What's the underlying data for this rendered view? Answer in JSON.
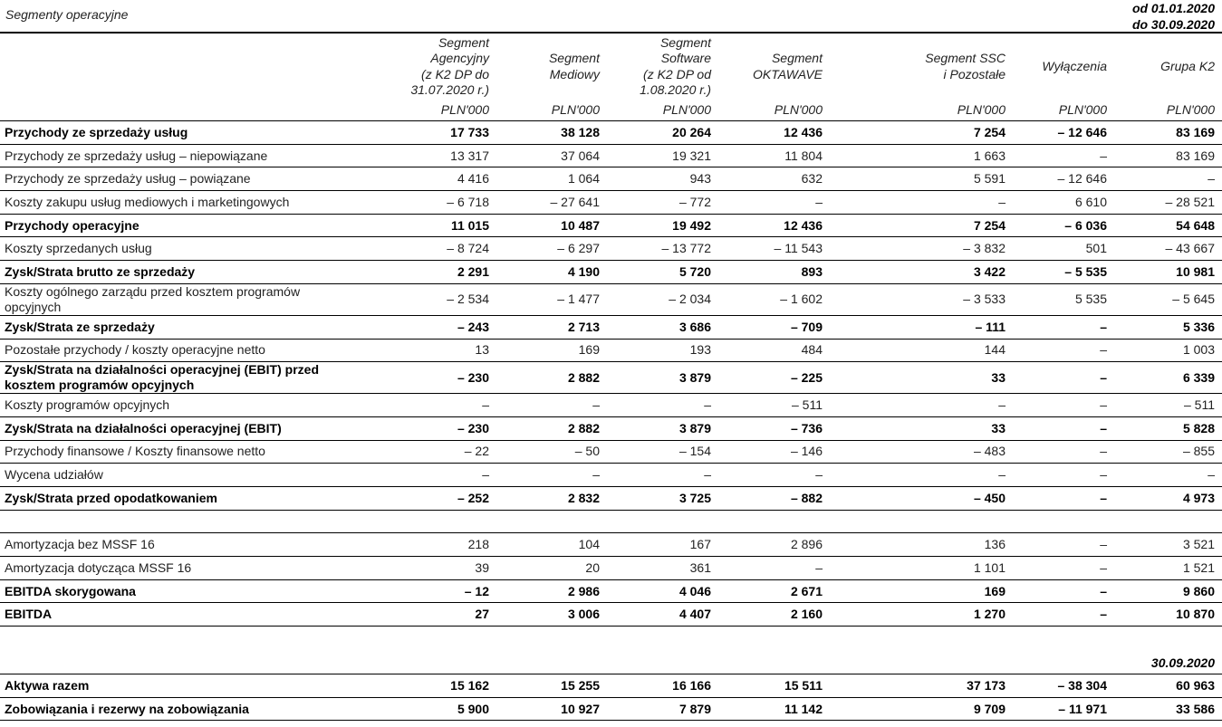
{
  "header": {
    "title": "Segmenty operacyjne",
    "period": [
      "od 01.01.2020",
      "do 30.09.2020"
    ]
  },
  "table": {
    "columns": [
      [
        "Segment",
        "Agencyjny",
        "(z K2 DP do",
        "31.07.2020 r.)"
      ],
      [
        "Segment",
        "Mediowy"
      ],
      [
        "Segment",
        "Software",
        "(z K2 DP od",
        "1.08.2020 r.)"
      ],
      [
        "Segment",
        "OKTAWAVE"
      ],
      [
        "Segment SSC",
        "i Pozostałe"
      ],
      [
        "Wyłączenia"
      ],
      [
        "Grupa K2"
      ]
    ],
    "units": [
      "PLN'000",
      "PLN'000",
      "PLN'000",
      "PLN'000",
      "PLN'000",
      "PLN'000",
      "PLN'000"
    ],
    "sections": [
      {
        "rows": [
          {
            "label": "Przychody ze sprzedaży usług",
            "bold": true,
            "cells": [
              "17 733",
              "38 128",
              "20 264",
              "12 436",
              "7 254",
              "– 12 646",
              "83 169"
            ]
          },
          {
            "label": "Przychody ze sprzedaży usług – niepowiązane",
            "bold": false,
            "cells": [
              "13 317",
              "37 064",
              "19 321",
              "11 804",
              "1 663",
              "–",
              "83 169"
            ]
          },
          {
            "label": "Przychody ze sprzedaży usług – powiązane",
            "bold": false,
            "cells": [
              "4 416",
              "1 064",
              "943",
              "632",
              "5 591",
              "– 12 646",
              "–"
            ]
          },
          {
            "label": "Koszty zakupu usług mediowych i marketingowych",
            "bold": false,
            "cells": [
              "– 6 718",
              "– 27 641",
              "– 772",
              "–",
              "–",
              "6 610",
              "– 28 521"
            ]
          },
          {
            "label": "Przychody operacyjne",
            "bold": true,
            "cells": [
              "11 015",
              "10 487",
              "19 492",
              "12 436",
              "7 254",
              "– 6 036",
              "54 648"
            ]
          },
          {
            "label": "Koszty sprzedanych usług",
            "bold": false,
            "cells": [
              "– 8 724",
              "– 6 297",
              "– 13 772",
              "– 11 543",
              "– 3 832",
              "501",
              "– 43 667"
            ]
          },
          {
            "label": "Zysk/Strata brutto ze sprzedaży",
            "bold": true,
            "cells": [
              "2 291",
              "4 190",
              "5 720",
              "893",
              "3 422",
              "– 5 535",
              "10 981"
            ]
          },
          {
            "label": "Koszty ogólnego zarządu przed kosztem programów opcyjnych",
            "bold": false,
            "cells": [
              "– 2 534",
              "– 1 477",
              "– 2 034",
              "– 1 602",
              "– 3 533",
              "5 535",
              "– 5 645"
            ]
          },
          {
            "label": "Zysk/Strata ze sprzedaży",
            "bold": true,
            "cells": [
              "– 243",
              "2 713",
              "3 686",
              "– 709",
              "– 111",
              "–",
              "5 336"
            ]
          },
          {
            "label": "Pozostałe przychody / koszty operacyjne netto",
            "bold": false,
            "cells": [
              "13",
              "169",
              "193",
              "484",
              "144",
              "–",
              "1 003"
            ]
          },
          {
            "label": "Zysk/Strata na działalności operacyjnej (EBIT) przed kosztem programów opcyjnych",
            "bold": true,
            "cells": [
              "– 230",
              "2 882",
              "3 879",
              "– 225",
              "33",
              "–",
              "6 339"
            ]
          },
          {
            "label": "Koszty programów opcyjnych",
            "bold": false,
            "cells": [
              "–",
              "–",
              "–",
              "– 511",
              "–",
              "–",
              "– 511"
            ]
          },
          {
            "label": "Zysk/Strata na działalności operacyjnej (EBIT)",
            "bold": true,
            "cells": [
              "– 230",
              "2 882",
              "3 879",
              "– 736",
              "33",
              "–",
              "5 828"
            ]
          },
          {
            "label": "Przychody finansowe / Koszty finansowe netto",
            "bold": false,
            "cells": [
              "– 22",
              "– 50",
              "– 154",
              "– 146",
              "– 483",
              "–",
              "– 855"
            ]
          },
          {
            "label": "Wycena udziałów",
            "bold": false,
            "cells": [
              "–",
              "–",
              "–",
              "–",
              "–",
              "–",
              "–"
            ]
          },
          {
            "label": "Zysk/Strata przed opodatkowaniem",
            "bold": true,
            "cells": [
              "– 252",
              "2 832",
              "3 725",
              "– 882",
              "– 450",
              "–",
              "4 973"
            ]
          }
        ]
      },
      {
        "rows": [
          {
            "label": "Amortyzacja bez MSSF 16",
            "bold": false,
            "cells": [
              "218",
              "104",
              "167",
              "2 896",
              "136",
              "–",
              "3 521"
            ]
          },
          {
            "label": "Amortyzacja dotycząca MSSF 16",
            "bold": false,
            "cells": [
              "39",
              "20",
              "361",
              "–",
              "1 101",
              "–",
              "1 521"
            ]
          },
          {
            "label": "EBITDA skorygowana",
            "bold": true,
            "cells": [
              "– 12",
              "2 986",
              "4 046",
              "2 671",
              "169",
              "–",
              "9 860"
            ]
          },
          {
            "label": "EBITDA",
            "bold": true,
            "cells": [
              "27",
              "3 006",
              "4 407",
              "2 160",
              "1 270",
              "–",
              "10 870"
            ]
          }
        ]
      }
    ]
  },
  "balance": {
    "date": "30.09.2020",
    "rows": [
      {
        "label": "Aktywa razem",
        "bold": true,
        "cells": [
          "15 162",
          "15 255",
          "16 166",
          "15 511",
          "37 173",
          "– 38 304",
          "60 963"
        ]
      },
      {
        "label": "Zobowiązania i rezerwy na zobowiązania",
        "bold": true,
        "cells": [
          "5 900",
          "10 927",
          "7 879",
          "11 142",
          "9 709",
          "– 11 971",
          "33 586"
        ]
      }
    ]
  }
}
